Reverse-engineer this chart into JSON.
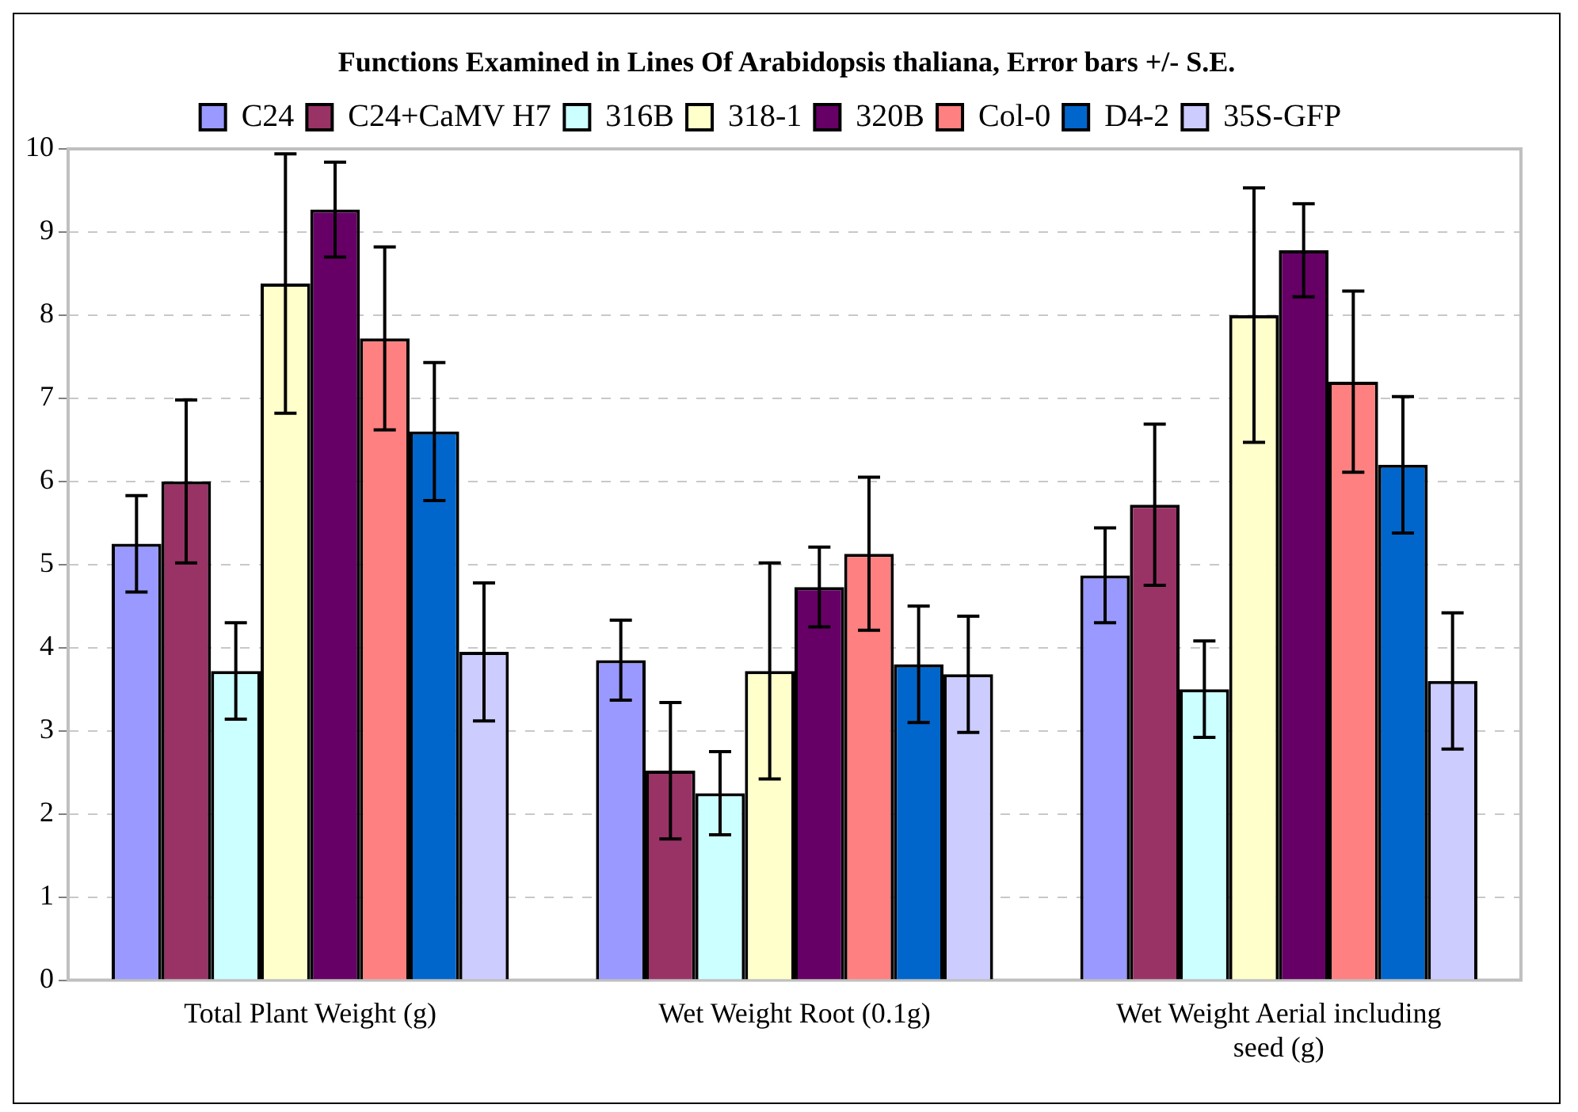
{
  "chart_data": {
    "type": "bar",
    "title": "Functions Examined in Lines Of Arabidopsis thaliana,  Error bars +/- S.E.",
    "categories": [
      "Total Plant Weight (g)",
      "Wet Weight Root (0.1g)",
      "Wet Weight Aerial including seed (g)"
    ],
    "series": [
      {
        "name": "C24",
        "color": "#9999ff",
        "values": [
          5.25,
          3.85,
          4.87
        ],
        "errors": [
          0.58,
          0.48,
          0.57
        ]
      },
      {
        "name": "C24+CaMV H7",
        "color": "#993366",
        "values": [
          6.0,
          2.52,
          5.72
        ],
        "errors": [
          0.98,
          0.82,
          0.97
        ]
      },
      {
        "name": "316B",
        "color": "#ccffff",
        "values": [
          3.72,
          2.25,
          3.5
        ],
        "errors": [
          0.58,
          0.5,
          0.58
        ]
      },
      {
        "name": "318-1",
        "color": "#ffffcc",
        "values": [
          8.38,
          3.72,
          8.0
        ],
        "errors": [
          1.56,
          1.3,
          1.53
        ]
      },
      {
        "name": "320B",
        "color": "#660066",
        "values": [
          9.27,
          4.73,
          8.78
        ],
        "errors": [
          0.57,
          0.48,
          0.56
        ]
      },
      {
        "name": "Col-0",
        "color": "#ff8080",
        "values": [
          7.72,
          5.13,
          7.2
        ],
        "errors": [
          1.1,
          0.92,
          1.09
        ]
      },
      {
        "name": "D4-2",
        "color": "#0066cc",
        "values": [
          6.6,
          3.8,
          6.2
        ],
        "errors": [
          0.83,
          0.7,
          0.82
        ]
      },
      {
        "name": "35S-GFP",
        "color": "#ccccff",
        "values": [
          3.95,
          3.68,
          3.6
        ],
        "errors": [
          0.83,
          0.7,
          0.82
        ]
      }
    ],
    "ylim": [
      0,
      10
    ],
    "yticks": [
      0,
      1,
      2,
      3,
      4,
      5,
      6,
      7,
      8,
      9,
      10
    ],
    "grid": "y",
    "legend": "top"
  }
}
